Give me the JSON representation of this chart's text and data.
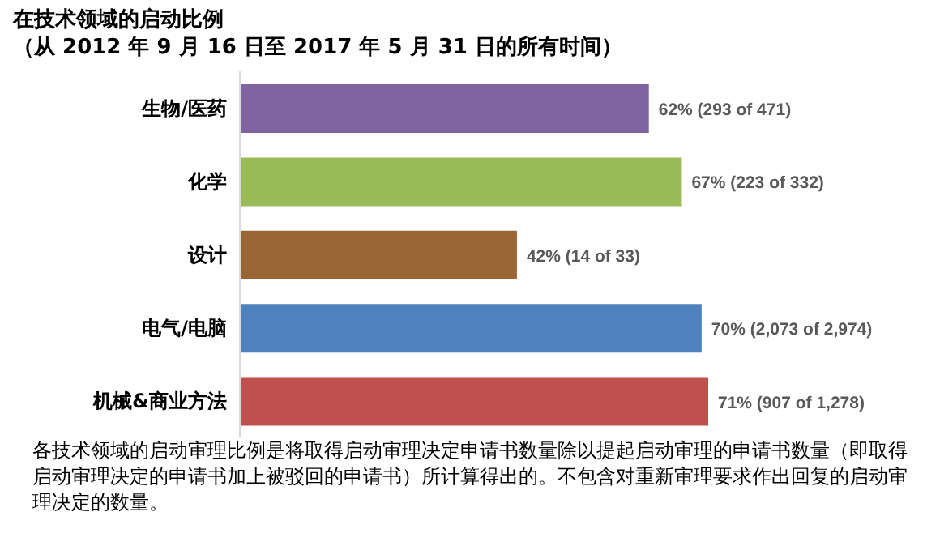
{
  "chart_data": {
    "type": "bar",
    "orientation": "horizontal",
    "title": "在技术领域的启动比例",
    "subtitle": "（从 2012 年 9 月 16 日至 2017 年 5 月 31 日的所有时间）",
    "categories": [
      "生物/医药",
      "化学",
      "设计",
      "电气/电脑",
      "机械&商业方法"
    ],
    "values": [
      62,
      67,
      42,
      70,
      71
    ],
    "colors": [
      "#8064a2",
      "#9bbb59",
      "#996633",
      "#4f81bd",
      "#c0504d"
    ],
    "value_labels": [
      "62% (293 of 471)",
      "67% (223 of 332)",
      "42% (14 of 33)",
      "70% (2,073 of 2,974)",
      "71% (907 of 1,278)"
    ],
    "annotations": [
      "各技术领域的启动审理比例是将取得启动审理决定申请书数量除以提起启动审理的申请书数量（即取得启动审理决定的申请书加上被驳回的申请书）所计算得出的。不包含对重新审理要求作出回复的启动审理决定的数量。"
    ],
    "data_labels": false
  }
}
